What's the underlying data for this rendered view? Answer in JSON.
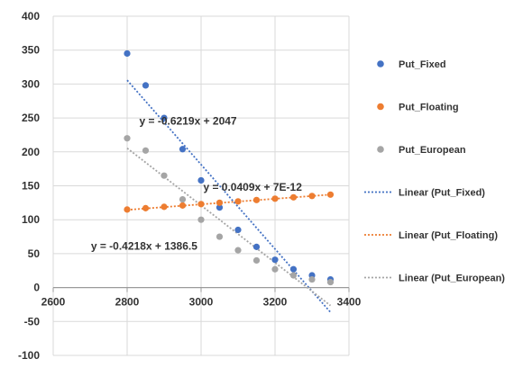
{
  "chart_data": {
    "type": "scatter",
    "xlim": [
      2600,
      3400
    ],
    "ylim": [
      -100,
      400
    ],
    "x_ticks": [
      "2600",
      "2800",
      "3000",
      "3200",
      "3400"
    ],
    "y_ticks": [
      "-100",
      "-50",
      "0",
      "50",
      "100",
      "150",
      "200",
      "250",
      "300",
      "350",
      "400"
    ],
    "grid": true,
    "legend_position": "right",
    "series": [
      {
        "name": "Put_Fixed",
        "color": "#4472C4",
        "x": [
          2800,
          2850,
          2900,
          2950,
          3000,
          3050,
          3100,
          3150,
          3200,
          3250,
          3300,
          3350
        ],
        "y": [
          345,
          298,
          250,
          204,
          158,
          118,
          85,
          60,
          41,
          27,
          18,
          12
        ]
      },
      {
        "name": "Put_Floating",
        "color": "#ED7D31",
        "x": [
          2800,
          2850,
          2900,
          2950,
          3000,
          3050,
          3100,
          3150,
          3200,
          3250,
          3300,
          3350
        ],
        "y": [
          115,
          117,
          119,
          121,
          123,
          125,
          127,
          129,
          131,
          133,
          135,
          137
        ]
      },
      {
        "name": "Put_European",
        "color": "#A5A5A5",
        "x": [
          2800,
          2850,
          2900,
          2950,
          3000,
          3050,
          3100,
          3150,
          3200,
          3250,
          3300,
          3350
        ],
        "y": [
          220,
          202,
          165,
          130,
          100,
          75,
          55,
          40,
          27,
          18,
          12,
          8
        ]
      }
    ],
    "trendlines": [
      {
        "name": "Linear (Put_Fixed)",
        "color": "#4472C4",
        "slope": -0.6219,
        "intercept": 2047,
        "x_range": [
          2800,
          3350
        ],
        "equation": "y = -0.6219x + 2047"
      },
      {
        "name": "Linear (Put_Floating)",
        "color": "#ED7D31",
        "slope": 0.0409,
        "intercept": 0,
        "x_range": [
          2800,
          3350
        ],
        "equation": "y = 0.0409x + 7E-12"
      },
      {
        "name": "Linear (Put_European)",
        "color": "#A5A5A5",
        "slope": -0.4218,
        "intercept": 1386.5,
        "x_range": [
          2800,
          3350
        ],
        "equation": "y = -0.4218x + 1386.5"
      }
    ]
  }
}
